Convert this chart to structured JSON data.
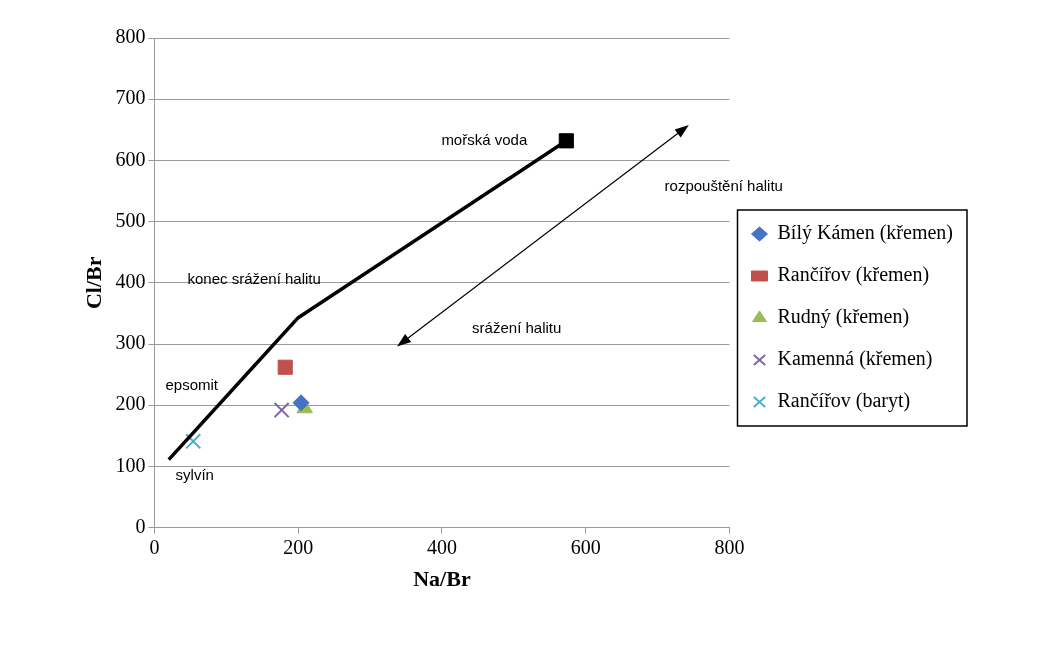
{
  "chart_data": {
    "type": "scatter",
    "xlabel": "Na/Br",
    "ylabel": "Cl/Br",
    "xlim": [
      0,
      800
    ],
    "xticks": [
      0,
      200,
      400,
      600,
      800
    ],
    "ylim": [
      0,
      800
    ],
    "yticks": [
      0,
      100,
      200,
      300,
      400,
      500,
      600,
      700,
      800
    ],
    "grid": "y",
    "legend": "right",
    "series": [
      {
        "type": "line",
        "color": "#000000",
        "marker": "none",
        "x": [
          20,
          200,
          573
        ],
        "values": [
          111,
          343,
          632
        ]
      },
      {
        "color": "#000000",
        "marker": "square",
        "x": [
          573
        ],
        "values": [
          632
        ]
      },
      {
        "name": "Bílý Kámen (křemen)",
        "color": "#4472c4",
        "marker": "diamond",
        "x": [
          204
        ],
        "values": [
          204
        ]
      },
      {
        "name": "Rančířov (křemen)",
        "color": "#c0504d",
        "marker": "square",
        "x": [
          182
        ],
        "values": [
          262
        ]
      },
      {
        "name": "Rudný (křemen)",
        "color": "#9bbb59",
        "marker": "triangle",
        "x": [
          209
        ],
        "values": [
          195
        ]
      },
      {
        "name": "Kamenná (křemen)",
        "color": "#8064a2",
        "marker": "cross",
        "x": [
          177
        ],
        "values": [
          192
        ]
      },
      {
        "name": "Rančířov (baryt)",
        "color": "#4bacc6",
        "marker": "cross",
        "x": [
          54
        ],
        "values": [
          141
        ]
      }
    ],
    "annotations": [
      {
        "text": "mořská voda",
        "x": 573,
        "y": 632
      },
      "rozpouštění halitu",
      "srážení halitu",
      {
        "text": "konec srážení halitu",
        "x": 200,
        "y": 343
      },
      "epsomit",
      {
        "text": "sylvín",
        "x": 20,
        "y": 111
      }
    ]
  }
}
